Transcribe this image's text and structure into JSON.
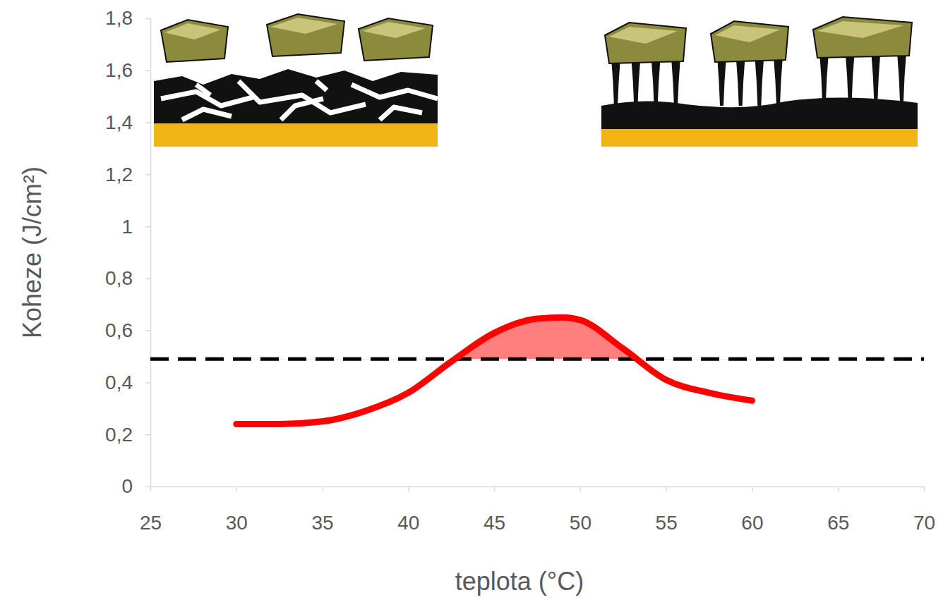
{
  "chart_data": {
    "type": "line",
    "x_label": "teplota (°C)",
    "y_label": "Koheze (J/cm²)",
    "x": [
      30,
      32.5,
      35,
      37.5,
      40,
      42.5,
      45,
      47.5,
      49,
      50,
      52.5,
      55,
      57.5,
      60
    ],
    "series": [
      {
        "color": "#ff0000",
        "line_style": "solid",
        "values": [
          0.24,
          0.24,
          0.25,
          0.29,
          0.36,
          0.48,
          0.59,
          0.645,
          0.65,
          0.64,
          0.53,
          0.41,
          0.36,
          0.33
        ]
      }
    ],
    "threshold": {
      "value": 0.49,
      "line_style": "dashed",
      "color": "#000000"
    },
    "xlim": [
      25,
      70
    ],
    "xticks": [
      25,
      30,
      35,
      40,
      45,
      50,
      55,
      60,
      65,
      70
    ],
    "ylim": [
      0,
      1.8
    ],
    "yticks": [
      0,
      {
        "value": 0.2,
        "label": "0,2"
      },
      {
        "value": 0.4,
        "label": "0,4"
      },
      {
        "value": 0.6,
        "label": "0,6"
      },
      {
        "value": 0.8,
        "label": "0,8"
      },
      1,
      {
        "value": 1.2,
        "label": "1,2"
      },
      {
        "value": 1.4,
        "label": "1,4"
      },
      {
        "value": 1.6,
        "label": "1,6"
      },
      {
        "value": 1.8,
        "label": "1,8"
      }
    ],
    "grid": false
  }
}
